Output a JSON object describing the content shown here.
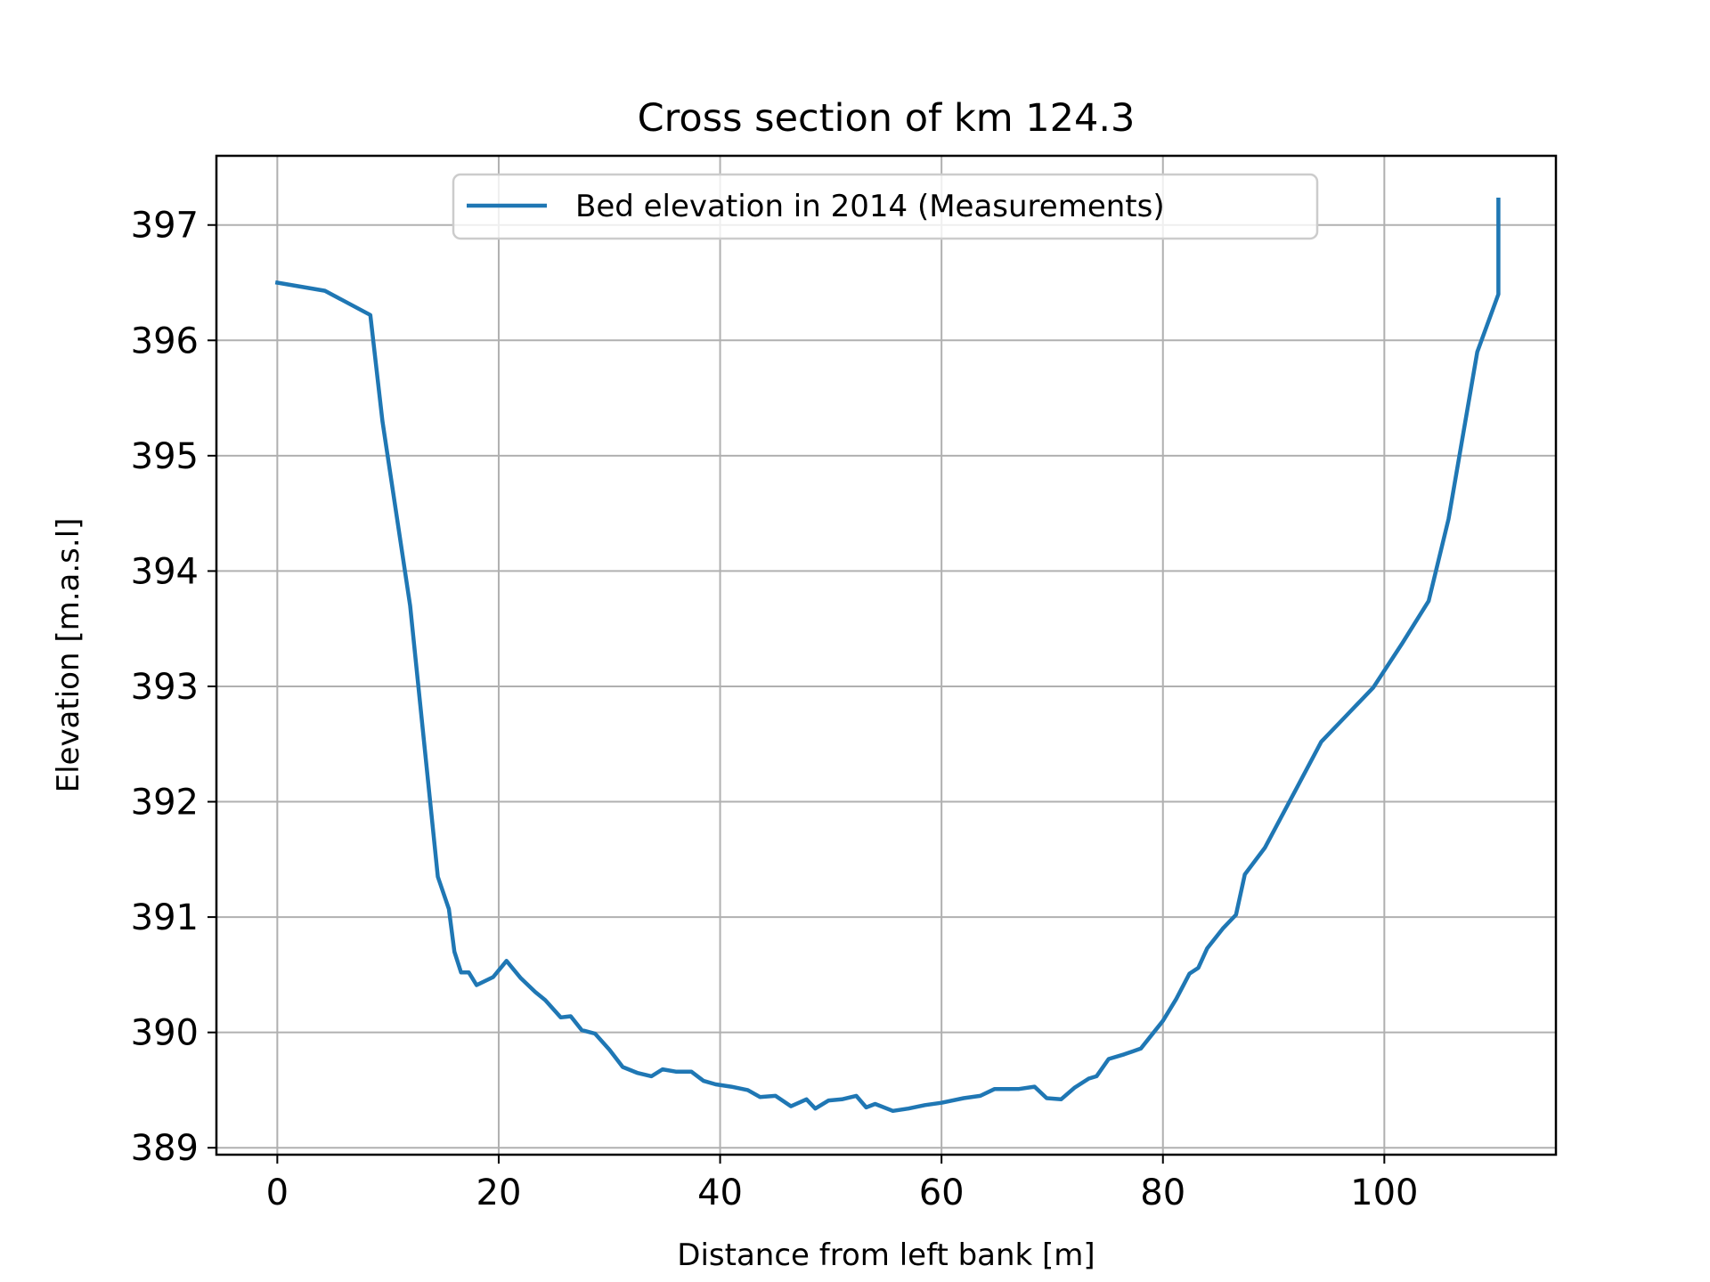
{
  "chart_data": {
    "type": "line",
    "title": "Cross section of km 124.3",
    "xlabel": "Distance from left bank [m]",
    "ylabel": "Elevation [m.a.s.l]",
    "xlim": [
      -5.5,
      115.5
    ],
    "ylim": [
      388.94,
      397.6
    ],
    "xticks": [
      0,
      20,
      40,
      60,
      80,
      100
    ],
    "yticks": [
      389,
      390,
      391,
      392,
      393,
      394,
      395,
      396,
      397
    ],
    "grid": true,
    "legend_position": "upper center",
    "series": [
      {
        "name": "Bed elevation in 2014 (Measurements)",
        "color": "#1f77b4",
        "x": [
          0,
          4.3,
          8.4,
          9.5,
          12,
          14.5,
          15.5,
          16,
          16.6,
          17.3,
          18,
          19.5,
          20.7,
          22,
          23.3,
          24.2,
          25.6,
          26.5,
          27.5,
          28.7,
          30,
          31.2,
          32.5,
          33.8,
          34.8,
          36,
          37.4,
          38.5,
          39.6,
          41,
          42.5,
          43.6,
          45,
          46.4,
          47.8,
          48.6,
          49.8,
          51,
          52.3,
          53.2,
          54,
          55.6,
          57,
          58.5,
          60,
          62,
          63.5,
          64.8,
          66,
          67,
          68.4,
          69.5,
          70.8,
          72,
          73.3,
          74,
          75.1,
          76.5,
          78,
          80,
          81.2,
          82.4,
          83.2,
          84,
          85.4,
          86.6,
          87.4,
          89.2,
          91.7,
          94.3,
          96.4,
          99,
          101.6,
          104,
          105.8,
          108.4,
          110.3,
          110.3
        ],
        "y": [
          396.5,
          396.43,
          396.22,
          395.3,
          393.7,
          391.35,
          391.07,
          390.7,
          390.52,
          390.52,
          390.41,
          390.48,
          390.62,
          390.47,
          390.35,
          390.28,
          390.13,
          390.14,
          390.02,
          389.99,
          389.85,
          389.7,
          389.65,
          389.62,
          389.68,
          389.66,
          389.66,
          389.58,
          389.55,
          389.53,
          389.5,
          389.44,
          389.45,
          389.36,
          389.42,
          389.34,
          389.41,
          389.42,
          389.45,
          389.35,
          389.38,
          389.32,
          389.34,
          389.37,
          389.39,
          389.43,
          389.45,
          389.51,
          389.51,
          389.51,
          389.53,
          389.43,
          389.42,
          389.52,
          389.6,
          389.62,
          389.77,
          389.81,
          389.86,
          390.1,
          390.29,
          390.51,
          390.56,
          390.73,
          390.9,
          391.02,
          391.37,
          391.6,
          392.05,
          392.52,
          392.73,
          392.99,
          393.37,
          393.74,
          394.45,
          395.9,
          396.4,
          397.22
        ]
      }
    ]
  }
}
